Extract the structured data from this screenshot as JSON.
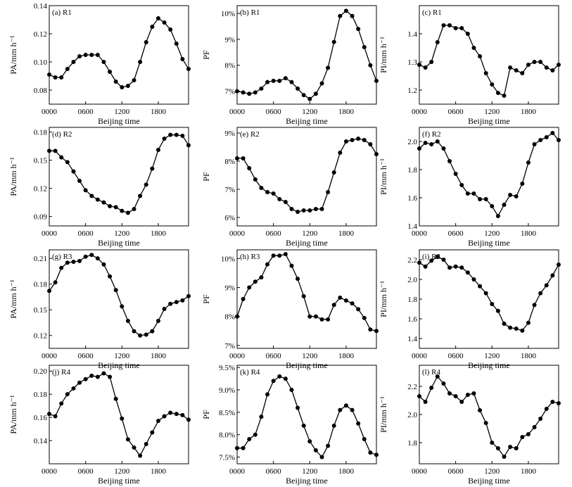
{
  "chart_data": [
    {
      "type": "line",
      "title": "(a) R1",
      "ylabel": "PA/mm h⁻¹",
      "xlabel": "Beijing time",
      "xticks": [
        "0000",
        "0600",
        "1200",
        "1800"
      ],
      "ylim": [
        0.07,
        0.14
      ],
      "yticks": [
        {
          "v": 0.08,
          "t": "0.08"
        },
        {
          "v": 0.1,
          "t": "0.10"
        },
        {
          "v": 0.12,
          "t": "0.12"
        },
        {
          "v": 0.14,
          "t": "0.14"
        }
      ],
      "x_hours": [
        0,
        1,
        2,
        3,
        4,
        5,
        6,
        7,
        8,
        9,
        10,
        11,
        12,
        13,
        14,
        15,
        16,
        17,
        18,
        19,
        20,
        21,
        22,
        23
      ],
      "values": [
        0.091,
        0.089,
        0.089,
        0.095,
        0.1,
        0.104,
        0.105,
        0.105,
        0.105,
        0.1,
        0.093,
        0.086,
        0.082,
        0.083,
        0.087,
        0.1,
        0.114,
        0.125,
        0.131,
        0.128,
        0.123,
        0.113,
        0.102,
        0.095
      ]
    },
    {
      "type": "line",
      "title": "(b) R1",
      "ylabel": "PF",
      "xlabel": "Beijing time",
      "xticks": [
        "0000",
        "0600",
        "1200",
        "1800"
      ],
      "ylim": [
        6.5,
        10.3
      ],
      "yticks": [
        {
          "v": 7,
          "t": "7%"
        },
        {
          "v": 8,
          "t": "8%"
        },
        {
          "v": 9,
          "t": "9%"
        },
        {
          "v": 10,
          "t": "10%"
        }
      ],
      "x_hours": [
        0,
        1,
        2,
        3,
        4,
        5,
        6,
        7,
        8,
        9,
        10,
        11,
        12,
        13,
        14,
        15,
        16,
        17,
        18,
        19,
        20,
        21,
        22,
        23
      ],
      "values": [
        7.0,
        6.95,
        6.9,
        6.95,
        7.1,
        7.35,
        7.4,
        7.4,
        7.5,
        7.35,
        7.1,
        6.85,
        6.7,
        6.9,
        7.3,
        7.9,
        8.9,
        9.9,
        10.1,
        9.9,
        9.4,
        8.7,
        8.0,
        7.4
      ]
    },
    {
      "type": "line",
      "title": "(c) R1",
      "ylabel": "PI/mm h⁻¹",
      "xlabel": "Beijing time",
      "xticks": [
        "0000",
        "0600",
        "1200",
        "1800"
      ],
      "ylim": [
        1.15,
        1.5
      ],
      "yticks": [
        {
          "v": 1.2,
          "t": "1.2"
        },
        {
          "v": 1.3,
          "t": "1.3"
        },
        {
          "v": 1.4,
          "t": "1.4"
        }
      ],
      "x_hours": [
        0,
        1,
        2,
        3,
        4,
        5,
        6,
        7,
        8,
        9,
        10,
        11,
        12,
        13,
        14,
        15,
        16,
        17,
        18,
        19,
        20,
        21,
        22,
        23
      ],
      "values": [
        1.29,
        1.28,
        1.3,
        1.37,
        1.43,
        1.43,
        1.42,
        1.42,
        1.4,
        1.35,
        1.32,
        1.26,
        1.22,
        1.19,
        1.18,
        1.28,
        1.27,
        1.26,
        1.29,
        1.3,
        1.3,
        1.28,
        1.27,
        1.29
      ]
    },
    {
      "type": "line",
      "title": "(d) R2",
      "ylabel": "PA/mm h⁻¹",
      "xlabel": "Beijing time",
      "xticks": [
        "0000",
        "0600",
        "1200",
        "1800"
      ],
      "ylim": [
        0.08,
        0.185
      ],
      "yticks": [
        {
          "v": 0.09,
          "t": "0.09"
        },
        {
          "v": 0.12,
          "t": "0.12"
        },
        {
          "v": 0.15,
          "t": "0.15"
        },
        {
          "v": 0.18,
          "t": "0.18"
        }
      ],
      "x_hours": [
        0,
        1,
        2,
        3,
        4,
        5,
        6,
        7,
        8,
        9,
        10,
        11,
        12,
        13,
        14,
        15,
        16,
        17,
        18,
        19,
        20,
        21,
        22,
        23
      ],
      "values": [
        0.16,
        0.16,
        0.153,
        0.148,
        0.138,
        0.128,
        0.118,
        0.112,
        0.108,
        0.105,
        0.101,
        0.1,
        0.096,
        0.094,
        0.098,
        0.112,
        0.124,
        0.141,
        0.161,
        0.173,
        0.177,
        0.177,
        0.176,
        0.166
      ]
    },
    {
      "type": "line",
      "title": "(e) R2",
      "ylabel": "PF",
      "xlabel": "Beijing time",
      "xticks": [
        "0000",
        "0600",
        "1200",
        "1800"
      ],
      "ylim": [
        5.7,
        9.2
      ],
      "yticks": [
        {
          "v": 6,
          "t": "6%"
        },
        {
          "v": 7,
          "t": "7%"
        },
        {
          "v": 8,
          "t": "8%"
        },
        {
          "v": 9,
          "t": "9%"
        }
      ],
      "x_hours": [
        0,
        1,
        2,
        3,
        4,
        5,
        6,
        7,
        8,
        9,
        10,
        11,
        12,
        13,
        14,
        15,
        16,
        17,
        18,
        19,
        20,
        21,
        22,
        23
      ],
      "values": [
        8.1,
        8.1,
        7.75,
        7.35,
        7.05,
        6.9,
        6.85,
        6.65,
        6.55,
        6.3,
        6.2,
        6.25,
        6.25,
        6.3,
        6.3,
        6.9,
        7.6,
        8.3,
        8.7,
        8.75,
        8.8,
        8.75,
        8.6,
        8.25
      ]
    },
    {
      "type": "line",
      "title": "(f) R2",
      "ylabel": "PI/mm h⁻¹",
      "xlabel": "Beijing time",
      "xticks": [
        "0000",
        "0600",
        "1200",
        "1800"
      ],
      "ylim": [
        1.4,
        2.1
      ],
      "yticks": [
        {
          "v": 1.4,
          "t": "1.4"
        },
        {
          "v": 1.6,
          "t": "1.6"
        },
        {
          "v": 1.8,
          "t": "1.8"
        },
        {
          "v": 2.0,
          "t": "2.0"
        }
      ],
      "x_hours": [
        0,
        1,
        2,
        3,
        4,
        5,
        6,
        7,
        8,
        9,
        10,
        11,
        12,
        13,
        14,
        15,
        16,
        17,
        18,
        19,
        20,
        21,
        22,
        23
      ],
      "values": [
        1.95,
        1.99,
        1.98,
        2.0,
        1.95,
        1.86,
        1.77,
        1.69,
        1.63,
        1.63,
        1.59,
        1.59,
        1.54,
        1.47,
        1.55,
        1.62,
        1.61,
        1.7,
        1.85,
        1.98,
        2.01,
        2.03,
        2.06,
        2.01
      ]
    },
    {
      "type": "line",
      "title": "(g) R3",
      "ylabel": "PA/mm h⁻¹",
      "xlabel": "Beijing time",
      "xticks": [
        "0000",
        "0600",
        "1200",
        "1800"
      ],
      "ylim": [
        0.105,
        0.22
      ],
      "yticks": [
        {
          "v": 0.12,
          "t": "0.12"
        },
        {
          "v": 0.15,
          "t": "0.15"
        },
        {
          "v": 0.18,
          "t": "0.18"
        },
        {
          "v": 0.21,
          "t": "0.21"
        }
      ],
      "x_hours": [
        0,
        1,
        2,
        3,
        4,
        5,
        6,
        7,
        8,
        9,
        10,
        11,
        12,
        13,
        14,
        15,
        16,
        17,
        18,
        19,
        20,
        21,
        22,
        23
      ],
      "values": [
        0.172,
        0.182,
        0.199,
        0.205,
        0.206,
        0.207,
        0.212,
        0.214,
        0.21,
        0.203,
        0.189,
        0.173,
        0.154,
        0.137,
        0.125,
        0.12,
        0.121,
        0.125,
        0.137,
        0.151,
        0.157,
        0.159,
        0.161,
        0.166
      ]
    },
    {
      "type": "line",
      "title": "(h) R3",
      "ylabel": "PF",
      "xlabel": "Beijing time",
      "xticks": [
        "0000",
        "0600",
        "1200",
        "1800"
      ],
      "ylim": [
        6.9,
        10.3
      ],
      "yticks": [
        {
          "v": 7,
          "t": "7%"
        },
        {
          "v": 8,
          "t": "8%"
        },
        {
          "v": 9,
          "t": "9%"
        },
        {
          "v": 10,
          "t": "10%"
        }
      ],
      "x_hours": [
        0,
        1,
        2,
        3,
        4,
        5,
        6,
        7,
        8,
        9,
        10,
        11,
        12,
        13,
        14,
        15,
        16,
        17,
        18,
        19,
        20,
        21,
        22,
        23
      ],
      "values": [
        8.0,
        8.6,
        9.0,
        9.2,
        9.35,
        9.8,
        10.1,
        10.1,
        10.15,
        9.75,
        9.3,
        8.7,
        8.0,
        8.0,
        7.9,
        7.9,
        8.4,
        8.65,
        8.55,
        8.45,
        8.25,
        7.95,
        7.55,
        7.5
      ]
    },
    {
      "type": "line",
      "title": "(i) R3",
      "ylabel": "PI/mm h⁻¹",
      "xlabel": "Beijing time",
      "xticks": [
        "0000",
        "0600",
        "1200",
        "1800"
      ],
      "ylim": [
        1.3,
        2.3
      ],
      "yticks": [
        {
          "v": 1.4,
          "t": "1.4"
        },
        {
          "v": 1.6,
          "t": "1.6"
        },
        {
          "v": 1.8,
          "t": "1.8"
        },
        {
          "v": 2.0,
          "t": "2.0"
        },
        {
          "v": 2.2,
          "t": "2.2"
        }
      ],
      "x_hours": [
        0,
        1,
        2,
        3,
        4,
        5,
        6,
        7,
        8,
        9,
        10,
        11,
        12,
        13,
        14,
        15,
        16,
        17,
        18,
        19,
        20,
        21,
        22,
        23
      ],
      "values": [
        2.17,
        2.13,
        2.19,
        2.23,
        2.2,
        2.12,
        2.13,
        2.12,
        2.07,
        2.0,
        1.93,
        1.86,
        1.75,
        1.68,
        1.55,
        1.51,
        1.5,
        1.48,
        1.56,
        1.74,
        1.86,
        1.94,
        2.04,
        2.15
      ]
    },
    {
      "type": "line",
      "title": "(j) R4",
      "ylabel": "PA/mm h⁻¹",
      "xlabel": "Beijing time",
      "xticks": [
        "0000",
        "0600",
        "1200",
        "1800"
      ],
      "ylim": [
        0.12,
        0.205
      ],
      "yticks": [
        {
          "v": 0.14,
          "t": "0.14"
        },
        {
          "v": 0.16,
          "t": "0.16"
        },
        {
          "v": 0.18,
          "t": "0.18"
        },
        {
          "v": 0.2,
          "t": "0.20"
        }
      ],
      "x_hours": [
        0,
        1,
        2,
        3,
        4,
        5,
        6,
        7,
        8,
        9,
        10,
        11,
        12,
        13,
        14,
        15,
        16,
        17,
        18,
        19,
        20,
        21,
        22,
        23
      ],
      "values": [
        0.163,
        0.161,
        0.172,
        0.18,
        0.185,
        0.19,
        0.193,
        0.196,
        0.195,
        0.198,
        0.195,
        0.176,
        0.159,
        0.141,
        0.134,
        0.127,
        0.137,
        0.147,
        0.157,
        0.161,
        0.164,
        0.163,
        0.162,
        0.158
      ]
    },
    {
      "type": "line",
      "title": "(k) R4",
      "ylabel": "PF",
      "xlabel": "Beijing time",
      "xticks": [
        "0000",
        "0600",
        "1200",
        "1800"
      ],
      "ylim": [
        7.35,
        9.55
      ],
      "yticks": [
        {
          "v": 7.5,
          "t": "7.5%"
        },
        {
          "v": 8.0,
          "t": "8.0%"
        },
        {
          "v": 8.5,
          "t": "8.5%"
        },
        {
          "v": 9.0,
          "t": "9.0%"
        },
        {
          "v": 9.5,
          "t": "9.5%"
        }
      ],
      "x_hours": [
        0,
        1,
        2,
        3,
        4,
        5,
        6,
        7,
        8,
        9,
        10,
        11,
        12,
        13,
        14,
        15,
        16,
        17,
        18,
        19,
        20,
        21,
        22,
        23
      ],
      "values": [
        7.7,
        7.7,
        7.9,
        8.0,
        8.4,
        8.9,
        9.2,
        9.3,
        9.25,
        9.0,
        8.6,
        8.2,
        7.85,
        7.65,
        7.5,
        7.75,
        8.2,
        8.55,
        8.65,
        8.55,
        8.25,
        7.9,
        7.6,
        7.55
      ]
    },
    {
      "type": "line",
      "title": "(l) R4",
      "ylabel": "PI/mm h⁻¹",
      "xlabel": "Beijing time",
      "xticks": [
        "0000",
        "0600",
        "1200",
        "1800"
      ],
      "ylim": [
        1.65,
        2.35
      ],
      "yticks": [
        {
          "v": 1.8,
          "t": "1.8"
        },
        {
          "v": 2.0,
          "t": "2.0"
        },
        {
          "v": 2.2,
          "t": "2.2"
        }
      ],
      "x_hours": [
        0,
        1,
        2,
        3,
        4,
        5,
        6,
        7,
        8,
        9,
        10,
        11,
        12,
        13,
        14,
        15,
        16,
        17,
        18,
        19,
        20,
        21,
        22,
        23
      ],
      "values": [
        2.13,
        2.09,
        2.19,
        2.27,
        2.22,
        2.15,
        2.13,
        2.09,
        2.14,
        2.15,
        2.03,
        1.94,
        1.8,
        1.76,
        1.7,
        1.77,
        1.76,
        1.84,
        1.86,
        1.91,
        1.97,
        2.04,
        2.09,
        2.08
      ]
    }
  ]
}
